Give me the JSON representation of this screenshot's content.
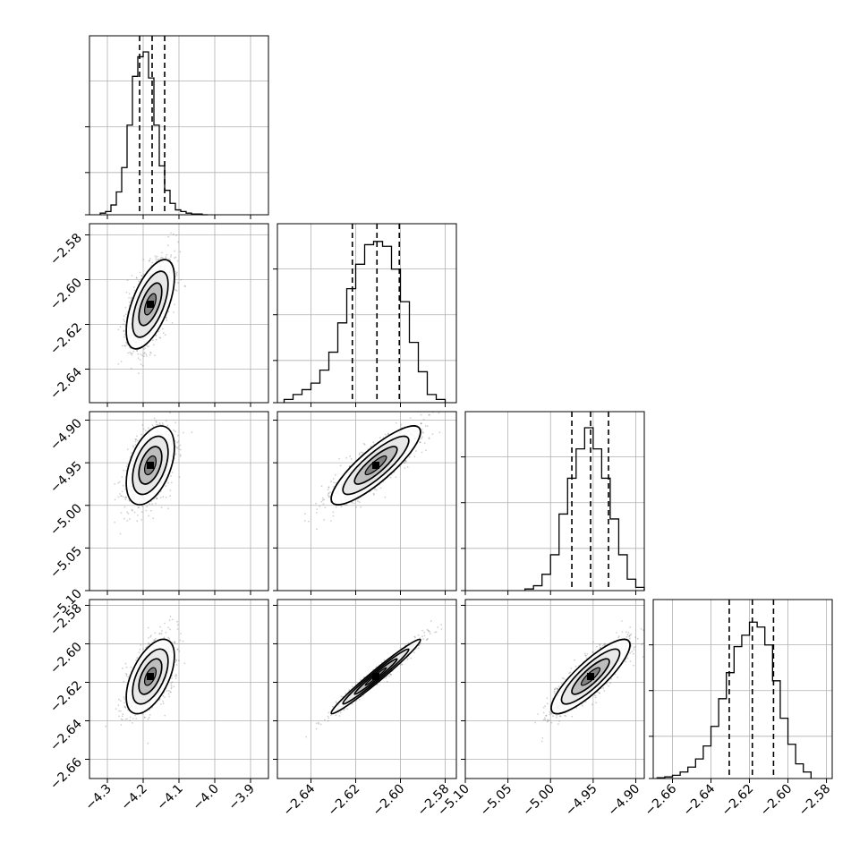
{
  "chart_data": {
    "type": "corner",
    "grid": true,
    "colors": {
      "line": "#000000",
      "grid": "#b0b0b0",
      "points": "#777777"
    },
    "variables": [
      {
        "range": [
          -4.35,
          -3.85
        ],
        "ticks": [
          "-4.3",
          "-4.2",
          "-4.1",
          "-4.0",
          "-3.9"
        ],
        "mean": -4.18,
        "std": 0.032,
        "quantiles": [
          -4.21,
          -4.175,
          -4.14
        ]
      },
      {
        "range": [
          -2.655,
          -2.575
        ],
        "ticks": [
          "-2.64",
          "-2.62",
          "-2.60",
          "-2.58"
        ],
        "mean": -2.611,
        "std": 0.0095,
        "quantiles": [
          -2.6215,
          -2.6105,
          -2.6005
        ]
      },
      {
        "range": [
          -5.1,
          -4.89
        ],
        "ticks": [
          "-5.10",
          "-5.05",
          "-5.00",
          "-4.95",
          "-4.90"
        ],
        "mean": -4.953,
        "std": 0.022,
        "quantiles": [
          -4.975,
          -4.953,
          -4.932
        ]
      },
      {
        "range": [
          -2.67,
          -2.577
        ],
        "ticks": [
          "-2.66",
          "-2.64",
          "-2.62",
          "-2.60",
          "-2.58"
        ],
        "mean": -2.617,
        "std": 0.0092,
        "quantiles": [
          -2.6305,
          -2.6185,
          -2.6075
        ]
      }
    ],
    "pair_correlations": {
      "1-0": 0.6,
      "2-0": 0.45,
      "2-1": 0.85,
      "3-0": 0.55,
      "3-1": 0.98,
      "3-2": 0.85
    },
    "histograms": [
      {
        "bins": [
          -4.32,
          -4.305,
          -4.29,
          -4.275,
          -4.26,
          -4.245,
          -4.23,
          -4.215,
          -4.2,
          -4.185,
          -4.17,
          -4.155,
          -4.14,
          -4.125,
          -4.11,
          -4.095,
          -4.08,
          -4.065,
          -4.05,
          -4.035,
          -4.02
        ],
        "counts": [
          0.01,
          0.02,
          0.06,
          0.14,
          0.29,
          0.55,
          0.85,
          0.97,
          1.0,
          0.84,
          0.55,
          0.3,
          0.15,
          0.07,
          0.03,
          0.02,
          0.01,
          0.005,
          0.005,
          0.0
        ]
      },
      {
        "bins": [
          -2.652,
          -2.648,
          -2.644,
          -2.64,
          -2.636,
          -2.632,
          -2.628,
          -2.624,
          -2.62,
          -2.616,
          -2.612,
          -2.608,
          -2.604,
          -2.6,
          -2.596,
          -2.592,
          -2.588,
          -2.584,
          -2.58
        ],
        "counts": [
          0.02,
          0.05,
          0.08,
          0.12,
          0.2,
          0.31,
          0.49,
          0.7,
          0.85,
          0.97,
          0.99,
          0.96,
          0.82,
          0.62,
          0.37,
          0.19,
          0.05,
          0.02
        ]
      },
      {
        "bins": [
          -5.03,
          -5.02,
          -5.01,
          -5.0,
          -4.99,
          -4.98,
          -4.97,
          -4.96,
          -4.95,
          -4.94,
          -4.93,
          -4.92,
          -4.91,
          -4.9,
          -4.89
        ],
        "counts": [
          0.01,
          0.03,
          0.1,
          0.22,
          0.47,
          0.69,
          0.87,
          1.0,
          0.87,
          0.69,
          0.44,
          0.22,
          0.07,
          0.02
        ]
      },
      {
        "bins": [
          -2.668,
          -2.664,
          -2.66,
          -2.656,
          -2.652,
          -2.648,
          -2.644,
          -2.64,
          -2.636,
          -2.632,
          -2.628,
          -2.624,
          -2.62,
          -2.616,
          -2.612,
          -2.608,
          -2.604,
          -2.6,
          -2.596,
          -2.592,
          -2.588
        ],
        "counts": [
          0.005,
          0.01,
          0.02,
          0.04,
          0.07,
          0.12,
          0.2,
          0.32,
          0.49,
          0.65,
          0.81,
          0.88,
          0.96,
          0.93,
          0.82,
          0.6,
          0.37,
          0.21,
          0.09,
          0.04
        ]
      }
    ]
  }
}
